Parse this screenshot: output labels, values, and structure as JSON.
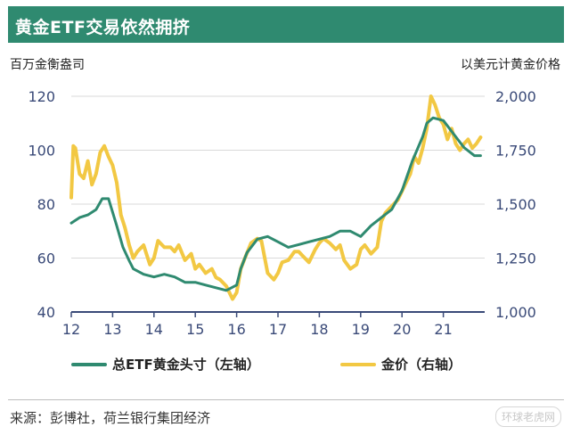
{
  "title": "黄金ETF交易依然拥挤",
  "chart_data": {
    "type": "line",
    "left_axis_label": "百万金衡盎司",
    "right_axis_label": "以美元计黄金价格",
    "left_ylim": [
      40,
      120
    ],
    "right_ylim": [
      1000,
      2000
    ],
    "left_ticks": [
      "120",
      "100",
      "80",
      "60",
      "40"
    ],
    "right_ticks": [
      "2,000",
      "1,750",
      "1,500",
      "1,250",
      "1,000"
    ],
    "x_ticks": [
      "12",
      "13",
      "14",
      "15",
      "16",
      "17",
      "18",
      "19",
      "20",
      "21"
    ],
    "xlim": [
      12,
      22
    ],
    "series": [
      {
        "name": "总ETF黄金头寸（左轴）",
        "axis": "left",
        "color": "#2f8a70",
        "x": [
          12.0,
          12.2,
          12.4,
          12.6,
          12.75,
          12.9,
          13.0,
          13.1,
          13.25,
          13.4,
          13.5,
          13.75,
          14.0,
          14.25,
          14.5,
          14.75,
          15.0,
          15.25,
          15.5,
          15.75,
          16.0,
          16.1,
          16.25,
          16.5,
          16.75,
          17.0,
          17.25,
          17.5,
          17.75,
          18.0,
          18.25,
          18.5,
          18.75,
          19.0,
          19.25,
          19.5,
          19.75,
          20.0,
          20.25,
          20.5,
          20.6,
          20.75,
          21.0,
          21.25,
          21.5,
          21.75,
          21.9
        ],
        "values": [
          73,
          75,
          76,
          78,
          82,
          82,
          77,
          72,
          64,
          59,
          56,
          54,
          53,
          54,
          53,
          51,
          51,
          50,
          49,
          48,
          50,
          56,
          62,
          67,
          68,
          66,
          64,
          65,
          66,
          67,
          68,
          70,
          70,
          68,
          72,
          75,
          78,
          85,
          96,
          105,
          110,
          112,
          111,
          106,
          101,
          98,
          98
        ]
      },
      {
        "name": "金价（右轴）",
        "axis": "right",
        "color": "#f2c843",
        "x": [
          12.0,
          12.05,
          12.1,
          12.2,
          12.3,
          12.4,
          12.5,
          12.6,
          12.7,
          12.8,
          12.9,
          13.0,
          13.1,
          13.2,
          13.3,
          13.4,
          13.5,
          13.6,
          13.75,
          13.9,
          14.0,
          14.1,
          14.25,
          14.4,
          14.5,
          14.6,
          14.75,
          14.9,
          15.0,
          15.1,
          15.25,
          15.4,
          15.5,
          15.6,
          15.75,
          15.9,
          16.0,
          16.1,
          16.2,
          16.35,
          16.5,
          16.6,
          16.75,
          16.9,
          17.0,
          17.1,
          17.25,
          17.4,
          17.5,
          17.6,
          17.75,
          17.9,
          18.0,
          18.1,
          18.25,
          18.4,
          18.5,
          18.6,
          18.75,
          18.9,
          19.0,
          19.1,
          19.25,
          19.4,
          19.5,
          19.6,
          19.75,
          19.9,
          20.0,
          20.1,
          20.2,
          20.3,
          20.4,
          20.5,
          20.6,
          20.7,
          20.8,
          20.9,
          21.0,
          21.1,
          21.2,
          21.3,
          21.4,
          21.5,
          21.6,
          21.7,
          21.8,
          21.9
        ],
        "values": [
          1530,
          1770,
          1760,
          1640,
          1620,
          1700,
          1590,
          1640,
          1740,
          1770,
          1720,
          1680,
          1600,
          1450,
          1390,
          1310,
          1250,
          1280,
          1310,
          1220,
          1250,
          1330,
          1300,
          1300,
          1280,
          1310,
          1240,
          1270,
          1200,
          1220,
          1180,
          1200,
          1160,
          1150,
          1120,
          1060,
          1090,
          1200,
          1250,
          1320,
          1340,
          1330,
          1180,
          1150,
          1180,
          1230,
          1240,
          1280,
          1280,
          1260,
          1230,
          1290,
          1320,
          1340,
          1320,
          1290,
          1310,
          1240,
          1200,
          1220,
          1290,
          1310,
          1270,
          1300,
          1420,
          1460,
          1490,
          1520,
          1560,
          1600,
          1640,
          1720,
          1690,
          1760,
          1850,
          2000,
          1960,
          1900,
          1870,
          1800,
          1850,
          1780,
          1750,
          1780,
          1800,
          1760,
          1780,
          1810
        ]
      }
    ]
  },
  "legend": {
    "etf_label": "总ETF黄金头寸（左轴）",
    "gold_label": "金价（右轴）"
  },
  "source": "来源：彭博社，荷兰银行集团经济",
  "watermark": "环球老虎网"
}
